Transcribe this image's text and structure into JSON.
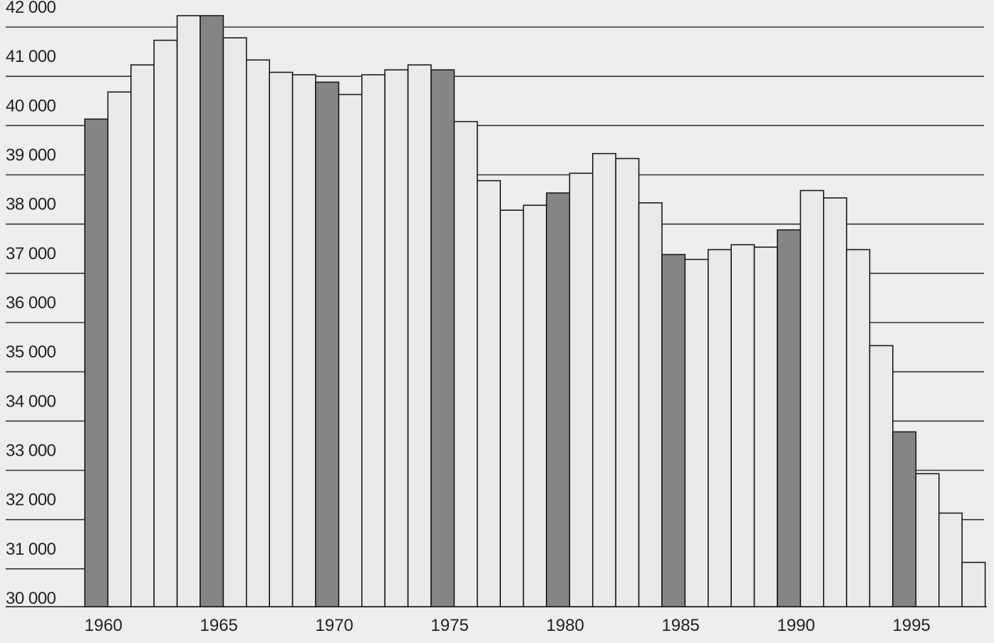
{
  "chart_data": {
    "type": "bar",
    "title": "",
    "xlabel": "",
    "ylabel": "",
    "ylim": [
      30000,
      42000
    ],
    "y_ticks": [
      {
        "value": 42000,
        "label": "42 000"
      },
      {
        "value": 41000,
        "label": "41 000"
      },
      {
        "value": 40000,
        "label": "40 000"
      },
      {
        "value": 39000,
        "label": "39 000"
      },
      {
        "value": 38000,
        "label": "38 000"
      },
      {
        "value": 37000,
        "label": "37 000"
      },
      {
        "value": 36000,
        "label": "36 000"
      },
      {
        "value": 35000,
        "label": "35 000"
      },
      {
        "value": 34000,
        "label": "34 000"
      },
      {
        "value": 33000,
        "label": "33 000"
      },
      {
        "value": 32000,
        "label": "32 000"
      },
      {
        "value": 31000,
        "label": "31 000"
      },
      {
        "value": 30000,
        "label": "30 000"
      }
    ],
    "x_tick_labels": [
      "1960",
      "1965",
      "1970",
      "1975",
      "1980",
      "1985",
      "1990",
      "1995"
    ],
    "categories": [
      1960,
      1961,
      1962,
      1963,
      1964,
      1965,
      1966,
      1967,
      1968,
      1969,
      1970,
      1971,
      1972,
      1973,
      1974,
      1975,
      1976,
      1977,
      1978,
      1979,
      1980,
      1981,
      1982,
      1983,
      1984,
      1985,
      1986,
      1987,
      1988,
      1989,
      1990,
      1991,
      1992,
      1993,
      1994,
      1995,
      1996,
      1997,
      1998
    ],
    "values": [
      39900,
      40450,
      41000,
      41500,
      42000,
      42000,
      41550,
      41100,
      40850,
      40800,
      40650,
      40400,
      40800,
      40900,
      41000,
      40900,
      39850,
      38650,
      38050,
      38150,
      38400,
      38800,
      39200,
      39100,
      38200,
      37150,
      37050,
      37250,
      37350,
      37300,
      37650,
      38450,
      38300,
      37250,
      35300,
      33550,
      32700,
      31900,
      30900
    ],
    "grid": true,
    "highlighted_years": [
      1960,
      1965,
      1970,
      1975,
      1980,
      1985,
      1990,
      1995
    ],
    "colors": {
      "highlight_bar": "#858585",
      "regular_bar": "#eaeaea",
      "bar_stroke": "#1a1a1a",
      "gridline": "#3a2f2f",
      "background": "#eeeeee"
    }
  }
}
